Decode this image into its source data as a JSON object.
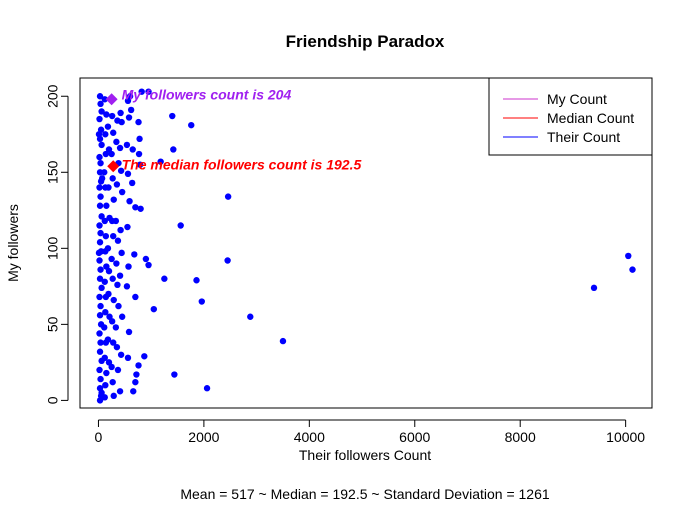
{
  "chart_data": {
    "type": "scatter",
    "title": "Friendship Paradox",
    "xlabel": "Their  followers  Count",
    "ylabel": "My  followers",
    "xlim": [
      -350,
      10500
    ],
    "ylim": [
      -5,
      212
    ],
    "x_ticks": [
      0,
      2000,
      4000,
      6000,
      8000,
      10000
    ],
    "x_tick_labels": [
      "0",
      "2000",
      "4000",
      "6000",
      "8000",
      "10000"
    ],
    "y_ticks": [
      0,
      50,
      100,
      150,
      200
    ],
    "y_tick_labels": [
      "0",
      "50",
      "100",
      "150",
      "200"
    ],
    "grid": false,
    "legend_position": "top-right",
    "legend": [
      {
        "label": "My Count",
        "color": "#cc33cc"
      },
      {
        "label": "Median Count",
        "color": "#ff0000"
      },
      {
        "label": "Their Count",
        "color": "#0000ff"
      }
    ],
    "annotations": [
      {
        "text": "My  followers  count is 204",
        "x": 440,
        "y": 201,
        "color": "#a020f0"
      },
      {
        "text": "The median  followers  count is 192.5",
        "x": 440,
        "y": 155,
        "color": "#ff0000"
      }
    ],
    "highlight_points": [
      {
        "name": "My Count",
        "x": 250,
        "y": 198,
        "color": "#a020f0"
      },
      {
        "name": "Median Count",
        "x": 280,
        "y": 154,
        "color": "#ff0000"
      }
    ],
    "footer": "Mean =  517 ~ Median =  192.5 ~ Standard Deviation =  1261",
    "series": [
      {
        "name": "Their Count",
        "color": "#0000ff",
        "points": [
          [
            30,
            200
          ],
          [
            40,
            195
          ],
          [
            60,
            190
          ],
          [
            20,
            185
          ],
          [
            50,
            178
          ],
          [
            30,
            172
          ],
          [
            60,
            168
          ],
          [
            20,
            160
          ],
          [
            40,
            156
          ],
          [
            30,
            150
          ],
          [
            50,
            144
          ],
          [
            20,
            140
          ],
          [
            40,
            134
          ],
          [
            30,
            128
          ],
          [
            60,
            121
          ],
          [
            20,
            115
          ],
          [
            40,
            110
          ],
          [
            30,
            104
          ],
          [
            50,
            98
          ],
          [
            20,
            92
          ],
          [
            40,
            86
          ],
          [
            30,
            80
          ],
          [
            60,
            74
          ],
          [
            20,
            68
          ],
          [
            40,
            62
          ],
          [
            30,
            56
          ],
          [
            50,
            50
          ],
          [
            20,
            44
          ],
          [
            40,
            38
          ],
          [
            30,
            32
          ],
          [
            60,
            26
          ],
          [
            20,
            20
          ],
          [
            40,
            14
          ],
          [
            30,
            8
          ],
          [
            50,
            3
          ],
          [
            30,
            0
          ],
          [
            60,
            5
          ],
          [
            10,
            97
          ],
          [
            70,
            146
          ],
          [
            10,
            175
          ],
          [
            120,
            198
          ],
          [
            150,
            188
          ],
          [
            130,
            175
          ],
          [
            140,
            162
          ],
          [
            110,
            150
          ],
          [
            130,
            140
          ],
          [
            150,
            128
          ],
          [
            120,
            118
          ],
          [
            140,
            108
          ],
          [
            130,
            98
          ],
          [
            150,
            88
          ],
          [
            120,
            78
          ],
          [
            140,
            68
          ],
          [
            130,
            58
          ],
          [
            110,
            48
          ],
          [
            140,
            38
          ],
          [
            120,
            28
          ],
          [
            150,
            18
          ],
          [
            130,
            10
          ],
          [
            120,
            2
          ],
          [
            180,
            180
          ],
          [
            200,
            165
          ],
          [
            190,
            140
          ],
          [
            210,
            120
          ],
          [
            180,
            100
          ],
          [
            200,
            85
          ],
          [
            190,
            70
          ],
          [
            210,
            55
          ],
          [
            180,
            40
          ],
          [
            200,
            25
          ],
          [
            260,
            187
          ],
          [
            280,
            176
          ],
          [
            250,
            162
          ],
          [
            270,
            146
          ],
          [
            290,
            132
          ],
          [
            260,
            118
          ],
          [
            280,
            108
          ],
          [
            250,
            93
          ],
          [
            270,
            80
          ],
          [
            290,
            66
          ],
          [
            260,
            52
          ],
          [
            280,
            38
          ],
          [
            250,
            22
          ],
          [
            270,
            12
          ],
          [
            290,
            3
          ],
          [
            360,
            184
          ],
          [
            340,
            170
          ],
          [
            380,
            156
          ],
          [
            350,
            142
          ],
          [
            330,
            118
          ],
          [
            370,
            105
          ],
          [
            340,
            90
          ],
          [
            360,
            76
          ],
          [
            380,
            62
          ],
          [
            330,
            48
          ],
          [
            350,
            35
          ],
          [
            370,
            20
          ],
          [
            420,
            189
          ],
          [
            440,
            183
          ],
          [
            410,
            166
          ],
          [
            430,
            151
          ],
          [
            450,
            137
          ],
          [
            420,
            112
          ],
          [
            440,
            97
          ],
          [
            410,
            82
          ],
          [
            450,
            55
          ],
          [
            430,
            30
          ],
          [
            410,
            6
          ],
          [
            560,
            197
          ],
          [
            580,
            186
          ],
          [
            540,
            168
          ],
          [
            560,
            149
          ],
          [
            590,
            131
          ],
          [
            550,
            114
          ],
          [
            570,
            88
          ],
          [
            540,
            75
          ],
          [
            580,
            45
          ],
          [
            560,
            28
          ],
          [
            600,
            200
          ],
          [
            620,
            191
          ],
          [
            650,
            165
          ],
          [
            640,
            143
          ],
          [
            700,
            127
          ],
          [
            680,
            96
          ],
          [
            700,
            68
          ],
          [
            720,
            17
          ],
          [
            660,
            6
          ],
          [
            700,
            12
          ],
          [
            760,
            183
          ],
          [
            780,
            172
          ],
          [
            770,
            162
          ],
          [
            790,
            155
          ],
          [
            800,
            126
          ],
          [
            760,
            23
          ],
          [
            820,
            203
          ],
          [
            900,
            93
          ],
          [
            870,
            29
          ],
          [
            950,
            203
          ],
          [
            950,
            89
          ],
          [
            1050,
            60
          ],
          [
            1180,
            157
          ],
          [
            1250,
            80
          ],
          [
            1420,
            165
          ],
          [
            1400,
            187
          ],
          [
            1560,
            115
          ],
          [
            1760,
            181
          ],
          [
            1860,
            79
          ],
          [
            1960,
            65
          ],
          [
            1440,
            17
          ],
          [
            2060,
            8
          ],
          [
            2460,
            134
          ],
          [
            2450,
            92
          ],
          [
            2880,
            55
          ],
          [
            3500,
            39
          ],
          [
            9400,
            74
          ],
          [
            10050,
            95
          ],
          [
            10130,
            86
          ]
        ]
      }
    ]
  }
}
